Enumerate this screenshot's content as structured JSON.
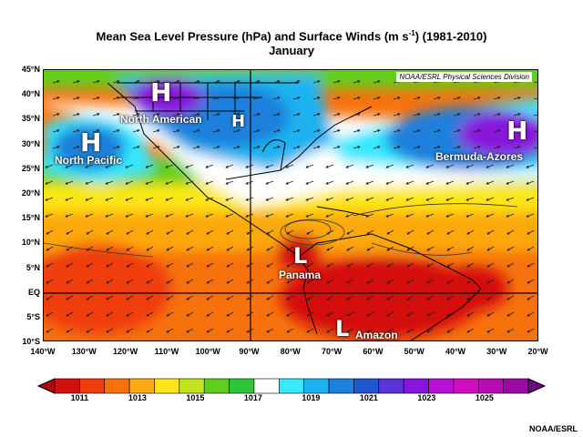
{
  "title": {
    "line1": "Mean Sea Level Pressure (hPa) and Surface Winds (m s",
    "sup": "-1",
    "line1b": ") (1981-2010)",
    "line2": "January"
  },
  "attribution_inset": "NOAA/ESRL Physical Sciences Division",
  "credit": "NOAA/ESRL",
  "lat_ticks": [
    "45°N",
    "40°N",
    "35°N",
    "30°N",
    "25°N",
    "20°N",
    "15°N",
    "10°N",
    "5°N",
    "EQ",
    "5°S",
    "10°S"
  ],
  "lon_ticks": [
    "140°W",
    "130°W",
    "120°W",
    "110°W",
    "100°W",
    "90°W",
    "80°W",
    "70°W",
    "60°W",
    "50°W",
    "40°W",
    "30°W",
    "20°W"
  ],
  "colorbar": {
    "ticks": [
      "1011",
      "1013",
      "1015",
      "1017",
      "1019",
      "1021",
      "1023",
      "1025"
    ],
    "colors": [
      "#d40f0f",
      "#f03c0c",
      "#f7720d",
      "#fda911",
      "#fde718",
      "#c3e41c",
      "#60cf1c",
      "#2ec43a",
      "#ffffff",
      "#35e8ff",
      "#1ab2f0",
      "#1c80dc",
      "#2058d0",
      "#5a34d8",
      "#8a14dc",
      "#b80ed6",
      "#d00cbc",
      "#b40ab0",
      "#9a0aa0"
    ]
  },
  "features": {
    "highs": [
      {
        "symbol": "H",
        "label": "North Pacific"
      },
      {
        "symbol": "H",
        "label": "North American"
      },
      {
        "symbol": "H",
        "label": ""
      },
      {
        "symbol": "H",
        "label": "Bermuda-Azores"
      }
    ],
    "lows": [
      {
        "symbol": "L",
        "label": "Panama"
      },
      {
        "symbol": "L",
        "label": "Amazon"
      }
    ]
  }
}
